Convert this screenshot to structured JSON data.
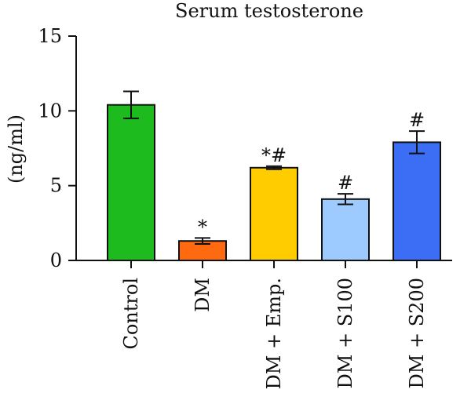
{
  "chart_data": {
    "type": "bar",
    "title": "Serum testosterone",
    "ylabel": "(ng/ml)",
    "xlabel": "",
    "ylim": [
      0,
      15
    ],
    "yticks": [
      0,
      5,
      10,
      15
    ],
    "categories": [
      "Control",
      "DM",
      "DM + Emp.",
      "DM + S100",
      "DM + S200"
    ],
    "values": [
      10.4,
      1.3,
      6.2,
      4.1,
      7.9
    ],
    "errors": [
      0.9,
      0.2,
      0.1,
      0.35,
      0.75
    ],
    "significance": [
      "",
      "*",
      "*#",
      "#",
      "#"
    ],
    "colors": [
      "#1dbb1d",
      "#ff6a10",
      "#ffcc00",
      "#9ecbff",
      "#3b6ef5"
    ],
    "grid": false,
    "legend": "none"
  }
}
